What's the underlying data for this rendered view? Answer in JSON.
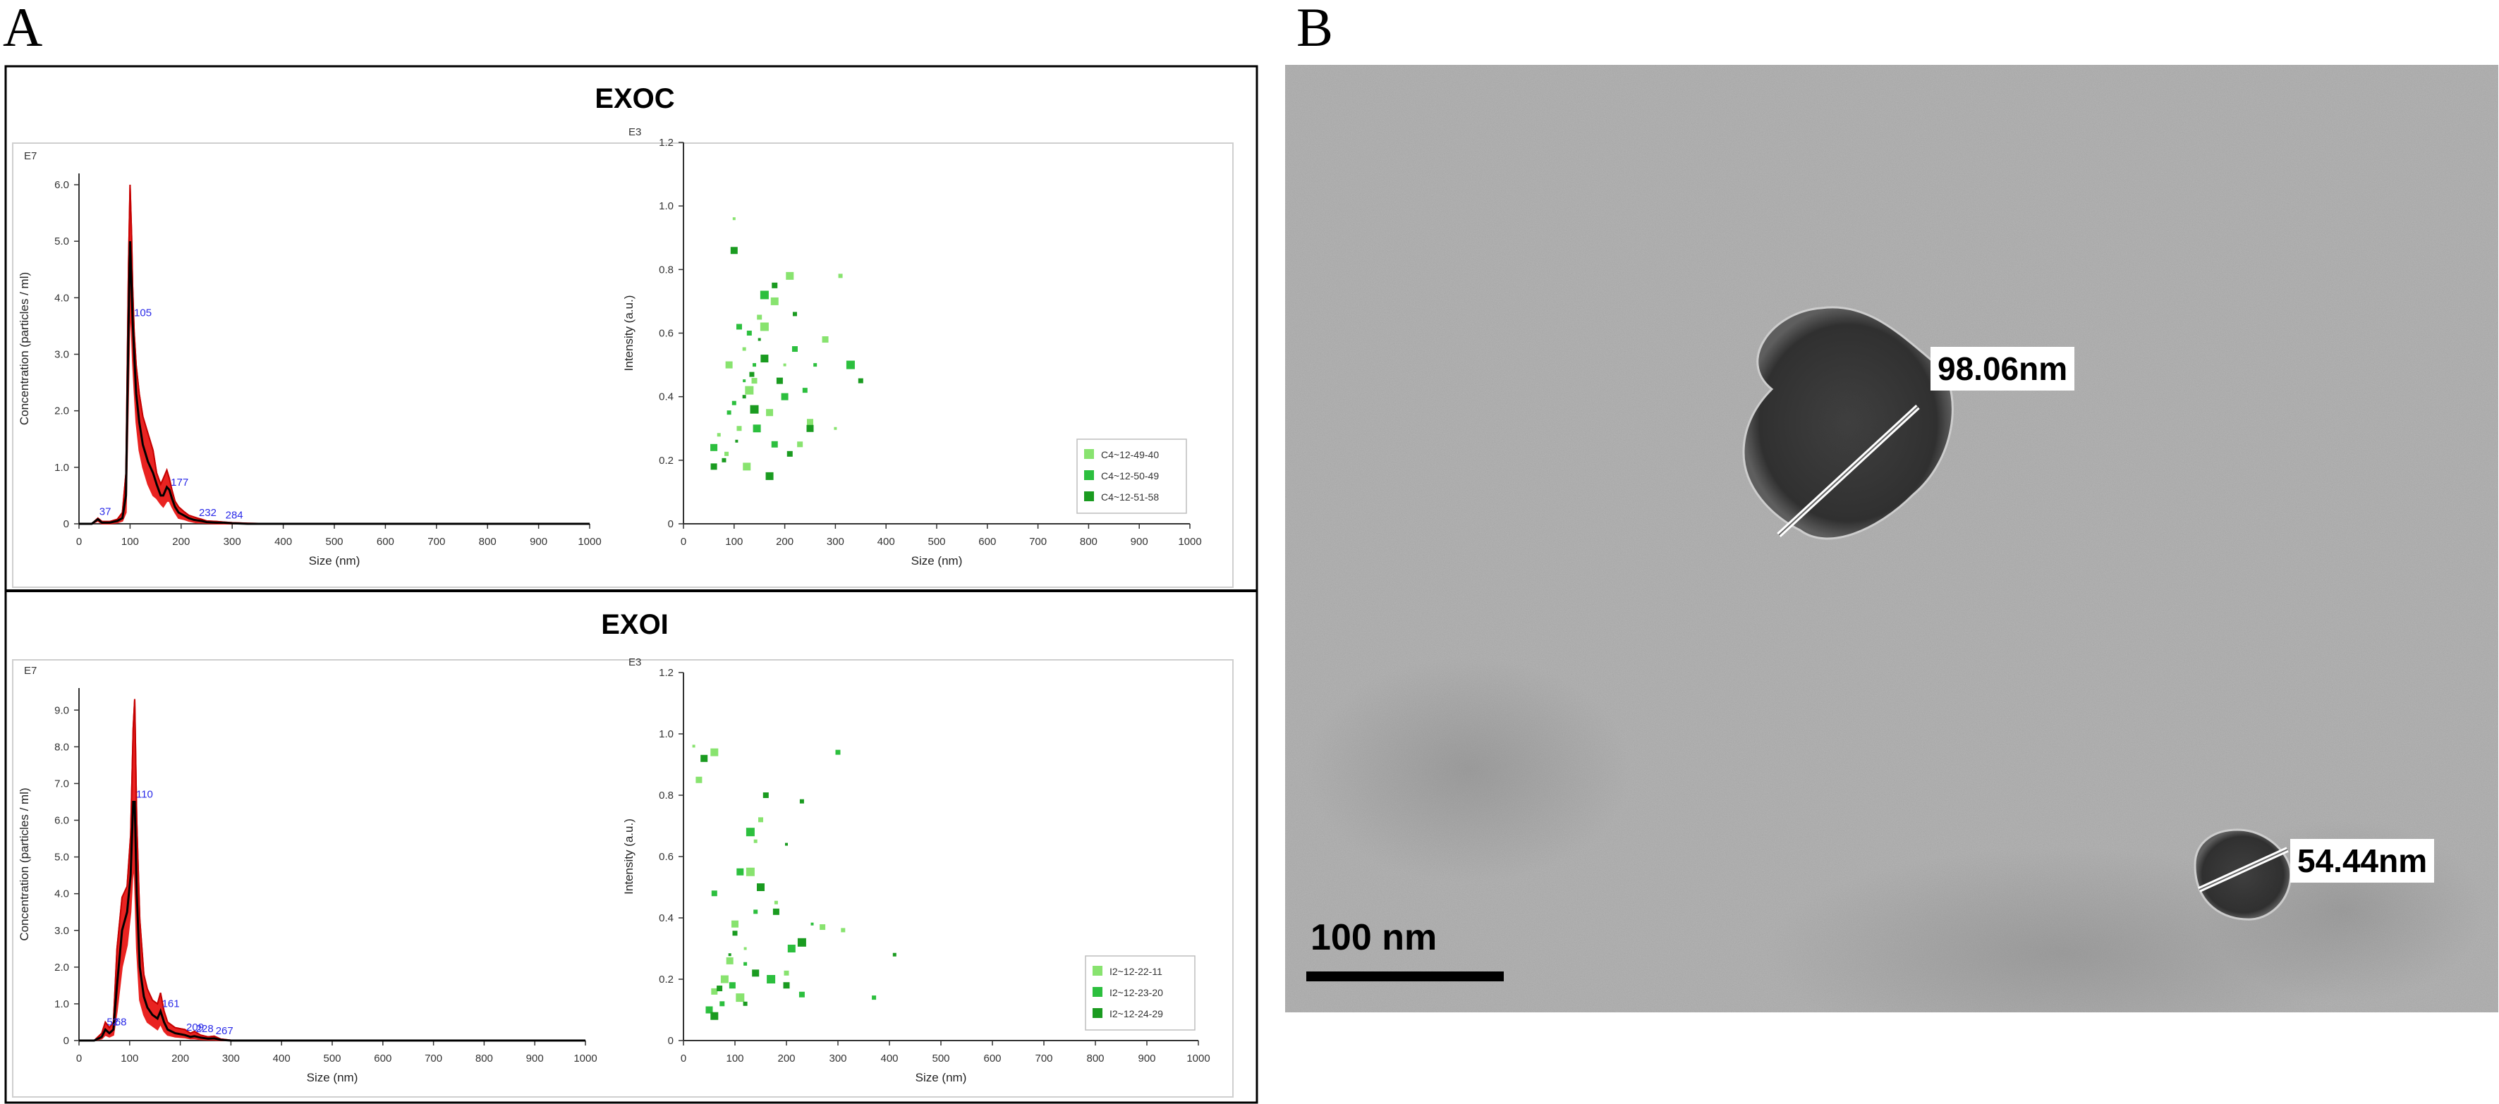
{
  "figure": {
    "panel_a_letter": "A",
    "panel_b_letter": "B"
  },
  "panel_a": {
    "top": {
      "title": "EXOC"
    },
    "bottom": {
      "title": "EXOI"
    }
  },
  "panel_b": {
    "measurements": [
      "98.06nm",
      "54.44nm"
    ],
    "scale_bar_label": "100 nm"
  },
  "colors": {
    "ntaFill": "#e8110f",
    "ntaLine": "#000000",
    "peakLabel": "#2a2ae8",
    "green1": "#88e36f",
    "green2": "#2cbf3e",
    "green3": "#1a9b20"
  },
  "chart_data": [
    {
      "id": "exoc-size",
      "type": "area",
      "panel": "EXOC",
      "xlabel": "Size (nm)",
      "ylabel": "Concentration (particles / ml)",
      "y_exponent": "E7",
      "xlim": [
        0,
        1000
      ],
      "ylim": [
        0,
        6.2
      ],
      "xticks": [
        "0",
        "100",
        "200",
        "300",
        "400",
        "500",
        "600",
        "700",
        "800",
        "900",
        "1000"
      ],
      "yticks": [
        "0",
        "1.0",
        "2.0",
        "3.0",
        "4.0",
        "5.0",
        "6.0"
      ],
      "peak_labels": [
        {
          "x": 37,
          "label": "37"
        },
        {
          "x": 105,
          "label": "105"
        },
        {
          "x": 177,
          "label": "177"
        },
        {
          "x": 232,
          "label": "232"
        },
        {
          "x": 284,
          "label": "284"
        }
      ],
      "x": [
        0,
        25,
        37,
        45,
        60,
        75,
        85,
        92,
        97,
        100,
        103,
        105,
        108,
        112,
        118,
        125,
        135,
        145,
        152,
        160,
        165,
        172,
        177,
        182,
        188,
        195,
        205,
        215,
        225,
        232,
        240,
        250,
        270,
        284,
        300,
        330,
        400,
        1000
      ],
      "mean": [
        0,
        0,
        0.08,
        0.02,
        0.02,
        0.05,
        0.1,
        0.5,
        3.5,
        5.0,
        4.2,
        3.6,
        3.0,
        2.3,
        1.8,
        1.4,
        1.1,
        0.9,
        0.7,
        0.5,
        0.5,
        0.65,
        0.6,
        0.45,
        0.3,
        0.2,
        0.15,
        0.1,
        0.07,
        0.06,
        0.05,
        0.03,
        0.02,
        0.02,
        0.01,
        0,
        0,
        0
      ],
      "upper": [
        0,
        0,
        0.1,
        0.04,
        0.04,
        0.08,
        0.2,
        0.9,
        4.6,
        6.0,
        5.1,
        4.2,
        3.4,
        2.8,
        2.3,
        1.9,
        1.6,
        1.3,
        0.9,
        0.7,
        0.8,
        0.95,
        0.8,
        0.6,
        0.4,
        0.3,
        0.22,
        0.15,
        0.12,
        0.1,
        0.08,
        0.05,
        0.04,
        0.03,
        0.02,
        0.01,
        0,
        0
      ],
      "lower": [
        0,
        0,
        0.05,
        0,
        0,
        0.02,
        0.05,
        0.2,
        2.5,
        3.9,
        3.4,
        2.9,
        2.4,
        1.8,
        1.3,
        1.0,
        0.7,
        0.5,
        0.45,
        0.35,
        0.3,
        0.4,
        0.4,
        0.3,
        0.2,
        0.1,
        0.08,
        0.05,
        0.03,
        0.02,
        0.02,
        0.01,
        0,
        0,
        0,
        0,
        0,
        0
      ]
    },
    {
      "id": "exoc-intensity",
      "type": "scatter",
      "panel": "EXOC",
      "xlabel": "Size (nm)",
      "ylabel": "Intensity (a.u.)",
      "y_exponent": "E3",
      "xlim": [
        0,
        1000
      ],
      "ylim": [
        0,
        1.2
      ],
      "xticks": [
        "0",
        "100",
        "200",
        "300",
        "400",
        "500",
        "600",
        "700",
        "800",
        "900",
        "1000"
      ],
      "yticks": [
        "0",
        "0.2",
        "0.4",
        "0.6",
        "0.8",
        "1.0",
        "1.2"
      ],
      "series": [
        {
          "name": "C4~12-49-40",
          "color": "#88e36f",
          "points": [
            [
              100,
              0.96
            ],
            [
              210,
              0.78
            ],
            [
              280,
              0.58
            ],
            [
              150,
              0.65
            ],
            [
              120,
              0.55
            ],
            [
              160,
              0.62
            ],
            [
              90,
              0.5
            ],
            [
              140,
              0.45
            ],
            [
              310,
              0.78
            ],
            [
              200,
              0.5
            ],
            [
              180,
              0.7
            ],
            [
              250,
              0.32
            ],
            [
              110,
              0.3
            ],
            [
              70,
              0.28
            ],
            [
              130,
              0.42
            ],
            [
              170,
              0.35
            ],
            [
              230,
              0.25
            ],
            [
              85,
              0.22
            ],
            [
              300,
              0.3
            ],
            [
              125,
              0.18
            ]
          ]
        },
        {
          "name": "C4~12-50-49",
          "color": "#2cbf3e",
          "points": [
            [
              130,
              0.6
            ],
            [
              140,
              0.5
            ],
            [
              160,
              0.72
            ],
            [
              200,
              0.4
            ],
            [
              220,
              0.55
            ],
            [
              100,
              0.38
            ],
            [
              120,
              0.45
            ],
            [
              145,
              0.3
            ],
            [
              180,
              0.25
            ],
            [
              240,
              0.42
            ],
            [
              260,
              0.5
            ],
            [
              330,
              0.5
            ],
            [
              60,
              0.24
            ],
            [
              110,
              0.62
            ],
            [
              90,
              0.35
            ]
          ]
        },
        {
          "name": "C4~12-51-58",
          "color": "#1a9b20",
          "points": [
            [
              100,
              0.86
            ],
            [
              180,
              0.75
            ],
            [
              220,
              0.66
            ],
            [
              150,
              0.58
            ],
            [
              160,
              0.52
            ],
            [
              190,
              0.45
            ],
            [
              350,
              0.45
            ],
            [
              120,
              0.4
            ],
            [
              140,
              0.36
            ],
            [
              250,
              0.3
            ],
            [
              210,
              0.22
            ],
            [
              80,
              0.2
            ],
            [
              105,
              0.26
            ],
            [
              170,
              0.15
            ],
            [
              60,
              0.18
            ],
            [
              135,
              0.47
            ]
          ]
        }
      ],
      "legend_position": "bottom-right"
    },
    {
      "id": "exoi-size",
      "type": "area",
      "panel": "EXOI",
      "xlabel": "Size (nm)",
      "ylabel": "Concentration (particles / ml)",
      "y_exponent": "E7",
      "xlim": [
        0,
        1000
      ],
      "ylim": [
        0,
        9.6
      ],
      "xticks": [
        "0",
        "100",
        "200",
        "300",
        "400",
        "500",
        "600",
        "700",
        "800",
        "900",
        "1000"
      ],
      "yticks": [
        "0",
        "1.0",
        "2.0",
        "3.0",
        "4.0",
        "5.0",
        "6.0",
        "7.0",
        "8.0",
        "9.0"
      ],
      "peak_labels": [
        {
          "x": 52,
          "label": "52"
        },
        {
          "x": 68,
          "label": "68"
        },
        {
          "x": 110,
          "label": "110"
        },
        {
          "x": 161,
          "label": "161"
        },
        {
          "x": 209,
          "label": "209"
        },
        {
          "x": 228,
          "label": "228"
        },
        {
          "x": 267,
          "label": "267"
        }
      ],
      "x": [
        0,
        30,
        45,
        52,
        60,
        68,
        75,
        85,
        95,
        102,
        107,
        110,
        114,
        120,
        128,
        135,
        145,
        155,
        161,
        168,
        175,
        190,
        209,
        220,
        228,
        240,
        255,
        267,
        280,
        300,
        1000
      ],
      "mean": [
        0,
        0,
        0.1,
        0.3,
        0.2,
        0.3,
        1.5,
        3.0,
        3.5,
        4.5,
        6.5,
        6.5,
        4.0,
        2.0,
        1.2,
        0.9,
        0.7,
        0.6,
        0.8,
        0.5,
        0.3,
        0.2,
        0.15,
        0.1,
        0.12,
        0.08,
        0.05,
        0.06,
        0.02,
        0,
        0
      ],
      "upper": [
        0,
        0,
        0.2,
        0.5,
        0.35,
        0.5,
        2.5,
        3.9,
        4.2,
        5.6,
        8.5,
        9.3,
        6.0,
        3.3,
        1.8,
        1.4,
        1.1,
        1.0,
        1.3,
        0.8,
        0.5,
        0.35,
        0.3,
        0.2,
        0.25,
        0.15,
        0.1,
        0.12,
        0.04,
        0.01,
        0
      ],
      "lower": [
        0,
        0,
        0.05,
        0.15,
        0.1,
        0.15,
        0.8,
        2.0,
        2.6,
        3.5,
        4.8,
        4.4,
        2.5,
        1.1,
        0.7,
        0.5,
        0.4,
        0.3,
        0.45,
        0.25,
        0.15,
        0.1,
        0.08,
        0.05,
        0.05,
        0.03,
        0.02,
        0.02,
        0,
        0,
        0
      ]
    },
    {
      "id": "exoi-intensity",
      "type": "scatter",
      "panel": "EXOI",
      "xlabel": "Size (nm)",
      "ylabel": "Intensity (a.u.)",
      "y_exponent": "E3",
      "xlim": [
        0,
        1000
      ],
      "ylim": [
        0,
        1.2
      ],
      "xticks": [
        "0",
        "100",
        "200",
        "300",
        "400",
        "500",
        "600",
        "700",
        "800",
        "900",
        "1000"
      ],
      "yticks": [
        "0",
        "0.2",
        "0.4",
        "0.6",
        "0.8",
        "1.0",
        "1.2"
      ],
      "series": [
        {
          "name": "I2~12-22-11",
          "color": "#88e36f",
          "points": [
            [
              20,
              0.96
            ],
            [
              60,
              0.94
            ],
            [
              30,
              0.85
            ],
            [
              150,
              0.72
            ],
            [
              140,
              0.65
            ],
            [
              130,
              0.55
            ],
            [
              100,
              0.38
            ],
            [
              270,
              0.37
            ],
            [
              310,
              0.36
            ],
            [
              120,
              0.3
            ],
            [
              80,
              0.2
            ],
            [
              60,
              0.16
            ],
            [
              200,
              0.22
            ],
            [
              180,
              0.45
            ],
            [
              110,
              0.14
            ],
            [
              90,
              0.26
            ]
          ]
        },
        {
          "name": "I2~12-23-20",
          "color": "#2cbf3e",
          "points": [
            [
              300,
              0.94
            ],
            [
              160,
              0.8
            ],
            [
              130,
              0.68
            ],
            [
              110,
              0.55
            ],
            [
              60,
              0.48
            ],
            [
              140,
              0.42
            ],
            [
              250,
              0.38
            ],
            [
              210,
              0.3
            ],
            [
              95,
              0.18
            ],
            [
              75,
              0.12
            ],
            [
              120,
              0.25
            ],
            [
              170,
              0.2
            ],
            [
              50,
              0.1
            ],
            [
              230,
              0.15
            ],
            [
              370,
              0.14
            ]
          ]
        },
        {
          "name": "I2~12-24-29",
          "color": "#1a9b20",
          "points": [
            [
              40,
              0.92
            ],
            [
              160,
              0.8
            ],
            [
              230,
              0.78
            ],
            [
              200,
              0.64
            ],
            [
              150,
              0.5
            ],
            [
              180,
              0.42
            ],
            [
              100,
              0.35
            ],
            [
              410,
              0.28
            ],
            [
              230,
              0.32
            ],
            [
              140,
              0.22
            ],
            [
              70,
              0.17
            ],
            [
              120,
              0.12
            ],
            [
              90,
              0.28
            ],
            [
              60,
              0.08
            ],
            [
              200,
              0.18
            ]
          ]
        }
      ],
      "legend_position": "bottom-right"
    }
  ]
}
